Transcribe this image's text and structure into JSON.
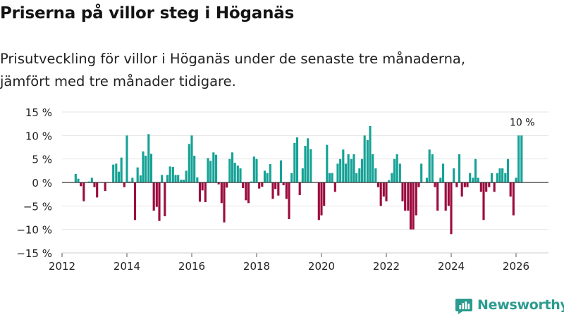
{
  "header": {
    "title": "Priserna på villor steg i Höganäs",
    "subtitle_line1": "Prisutveckling för villor i Höganäs under de senaste tre månaderna,",
    "subtitle_line2": "jämfört med tre månader tidigare."
  },
  "brand": {
    "name": "Newsworthy",
    "icon": "newsworthy-logo-icon"
  },
  "colors": {
    "positive": "#16a296",
    "negative": "#9c0c3f",
    "grid": "#e4e4e4",
    "zero_line": "#333333",
    "text": "#222222",
    "brand": "#2b9b8f"
  },
  "chart_data": {
    "type": "bar",
    "title": "Priserna på villor steg i Höganäs",
    "xlabel": "",
    "ylabel": "",
    "unit": "%",
    "ylim": [
      -15,
      15
    ],
    "xlim": [
      2012,
      2027
    ],
    "y_ticks": [
      15,
      10,
      5,
      0,
      -5,
      -10,
      -15
    ],
    "y_tick_labels": [
      "15 %",
      "10 %",
      "5 %",
      "0 %",
      "−5 %",
      "−10 %",
      "−15 %"
    ],
    "x_ticks": [
      2012,
      2014,
      2016,
      2018,
      2020,
      2022,
      2024,
      2026
    ],
    "x_tick_labels": [
      "2012",
      "2014",
      "2016",
      "2018",
      "2020",
      "2022",
      "2024",
      "2026"
    ],
    "grid": true,
    "annotation": {
      "text": "10 %",
      "x": 2026.17,
      "value": 10
    },
    "x": [
      2012.42,
      2012.5,
      2012.58,
      2012.67,
      2012.75,
      2012.83,
      2012.92,
      2013.0,
      2013.08,
      2013.17,
      2013.25,
      2013.33,
      2013.42,
      2013.5,
      2013.58,
      2013.67,
      2013.75,
      2013.83,
      2013.92,
      2014.0,
      2014.08,
      2014.17,
      2014.25,
      2014.33,
      2014.42,
      2014.5,
      2014.58,
      2014.67,
      2014.75,
      2014.83,
      2014.92,
      2015.0,
      2015.08,
      2015.17,
      2015.25,
      2015.33,
      2015.42,
      2015.5,
      2015.58,
      2015.67,
      2015.75,
      2015.83,
      2015.92,
      2016.0,
      2016.08,
      2016.17,
      2016.25,
      2016.33,
      2016.42,
      2016.5,
      2016.58,
      2016.67,
      2016.75,
      2016.83,
      2016.92,
      2017.0,
      2017.08,
      2017.17,
      2017.25,
      2017.33,
      2017.42,
      2017.5,
      2017.58,
      2017.67,
      2017.75,
      2017.83,
      2017.92,
      2018.0,
      2018.08,
      2018.17,
      2018.25,
      2018.33,
      2018.42,
      2018.5,
      2018.58,
      2018.67,
      2018.75,
      2018.83,
      2018.92,
      2019.0,
      2019.08,
      2019.17,
      2019.25,
      2019.33,
      2019.42,
      2019.5,
      2019.58,
      2019.67,
      2019.75,
      2019.83,
      2019.92,
      2020.0,
      2020.08,
      2020.17,
      2020.25,
      2020.33,
      2020.42,
      2020.5,
      2020.58,
      2020.67,
      2020.75,
      2020.83,
      2020.92,
      2021.0,
      2021.08,
      2021.17,
      2021.25,
      2021.33,
      2021.42,
      2021.5,
      2021.58,
      2021.67,
      2021.75,
      2021.83,
      2021.92,
      2022.0,
      2022.08,
      2022.17,
      2022.25,
      2022.33,
      2022.42,
      2022.5,
      2022.58,
      2022.67,
      2022.75,
      2022.83,
      2022.92,
      2023.0,
      2023.08,
      2023.17,
      2023.25,
      2023.33,
      2023.42,
      2023.5,
      2023.58,
      2023.67,
      2023.75,
      2023.83,
      2023.92,
      2024.0,
      2024.08,
      2024.17,
      2024.25,
      2024.33,
      2024.42,
      2024.5,
      2024.58,
      2024.67,
      2024.75,
      2024.83,
      2024.92,
      2025.0,
      2025.08,
      2025.17,
      2025.25,
      2025.33,
      2025.42,
      2025.5,
      2025.58,
      2025.67,
      2025.75,
      2025.83,
      2025.92,
      2026.0,
      2026.08,
      2026.17
    ],
    "values": [
      1.8,
      0.8,
      -0.8,
      -4,
      0,
      0.2,
      1,
      -1,
      -3.2,
      0,
      0,
      -1.8,
      0,
      0,
      3.8,
      4,
      2.3,
      5.3,
      -1,
      10,
      0.2,
      1,
      -8,
      3.2,
      1.5,
      6.6,
      5.7,
      10.3,
      6.1,
      -6,
      -5.2,
      -8.2,
      1.6,
      -7.2,
      1.6,
      3.4,
      3.3,
      1.6,
      1.6,
      0.6,
      0.6,
      2.5,
      8.2,
      10,
      5.7,
      1.1,
      -4.1,
      -1.7,
      -4.2,
      5.2,
      4.6,
      6.4,
      5.9,
      -0.4,
      -4.4,
      -8.5,
      -1.1,
      5,
      6.4,
      4.2,
      3.6,
      3,
      -1.2,
      -3.8,
      -4.4,
      0.2,
      5.5,
      5,
      -1.3,
      -0.9,
      2.5,
      2,
      3.9,
      -3.5,
      -1.4,
      -2.8,
      4.7,
      -0.6,
      -3.5,
      -7.8,
      2,
      8.4,
      9.6,
      -2.7,
      3,
      7.8,
      9.4,
      7.1,
      0,
      0,
      -8,
      -7,
      -5,
      8,
      2,
      2,
      -2,
      4,
      5,
      7,
      4,
      6,
      5,
      6,
      2,
      3,
      5,
      10,
      9,
      12,
      6,
      3,
      -1,
      -5,
      -3,
      -4,
      0.5,
      2,
      5,
      6,
      4,
      -4,
      -6,
      -6,
      -10,
      -10,
      -7,
      -1,
      4,
      0,
      1,
      7,
      6,
      -1,
      -6,
      1,
      4,
      -6,
      -5,
      -11,
      3,
      -1,
      6,
      -3,
      -1,
      -1,
      2,
      1,
      5,
      1,
      -2,
      -8,
      -2,
      -1,
      2,
      -2,
      2,
      3,
      3,
      2,
      5,
      -3,
      -7,
      1,
      10,
      10
    ]
  }
}
